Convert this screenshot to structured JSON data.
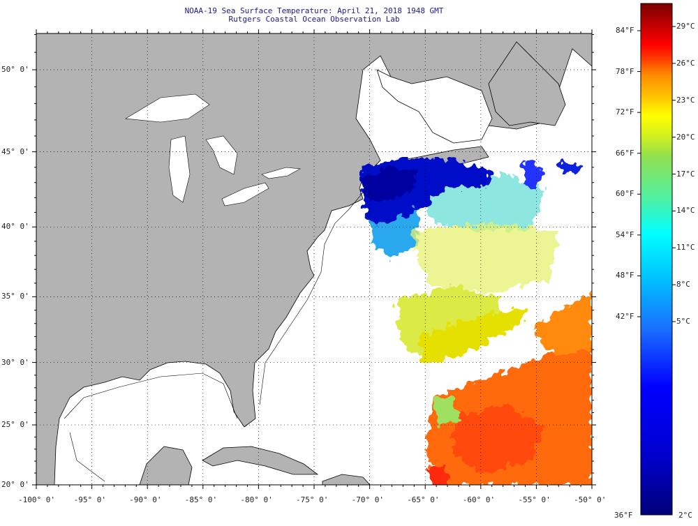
{
  "header": {
    "title": "NOAA-19 Sea Surface Temperature:  April 21, 2018 1948 GMT",
    "subtitle": "Rutgers Coastal Ocean Observation Lab"
  },
  "map": {
    "lat_labels": [
      {
        "value": 50,
        "text": "50° 0'"
      },
      {
        "value": 45,
        "text": "45° 0'"
      },
      {
        "value": 40,
        "text": "40° 0'"
      },
      {
        "value": 35,
        "text": "35° 0'"
      },
      {
        "value": 30,
        "text": "30° 0'"
      },
      {
        "value": 25,
        "text": "25° 0'"
      },
      {
        "value": 20,
        "text": "20° 0'"
      }
    ],
    "lon_labels": [
      {
        "value": -100,
        "text": "-100° 0'"
      },
      {
        "value": -95,
        "text": "-95° 0'"
      },
      {
        "value": -90,
        "text": "-90° 0'"
      },
      {
        "value": -85,
        "text": "-85° 0'"
      },
      {
        "value": -80,
        "text": "-80° 0'"
      },
      {
        "value": -75,
        "text": "-75° 0'"
      },
      {
        "value": -70,
        "text": "-70° 0'"
      },
      {
        "value": -65,
        "text": "-65° 0'"
      },
      {
        "value": -60,
        "text": "-60° 0'"
      },
      {
        "value": -55,
        "text": "-55° 0'"
      },
      {
        "value": -50,
        "text": "-50° 0'"
      }
    ],
    "lat_range": [
      20,
      52.3
    ],
    "lon_range": [
      -100,
      -50
    ],
    "land_color": "#b3b3b3"
  },
  "colorbar": {
    "fahrenheit": [
      {
        "value": 84,
        "text": "84°F"
      },
      {
        "value": 78,
        "text": "78°F"
      },
      {
        "value": 72,
        "text": "72°F"
      },
      {
        "value": 66,
        "text": "66°F"
      },
      {
        "value": 60,
        "text": "60°F"
      },
      {
        "value": 54,
        "text": "54°F"
      },
      {
        "value": 48,
        "text": "48°F"
      },
      {
        "value": 42,
        "text": "42°F"
      }
    ],
    "fahrenheit_min": "36°F",
    "celsius": [
      {
        "value": 29,
        "text": "29°C"
      },
      {
        "value": 26,
        "text": "26°C"
      },
      {
        "value": 23,
        "text": "23°C"
      },
      {
        "value": 20,
        "text": "20°C"
      },
      {
        "value": 17,
        "text": "17°C"
      },
      {
        "value": 14,
        "text": "14°C"
      },
      {
        "value": 11,
        "text": "11°C"
      },
      {
        "value": 8,
        "text": "8°C"
      },
      {
        "value": 5,
        "text": "5°C"
      }
    ],
    "celsius_min": "2°C"
  }
}
